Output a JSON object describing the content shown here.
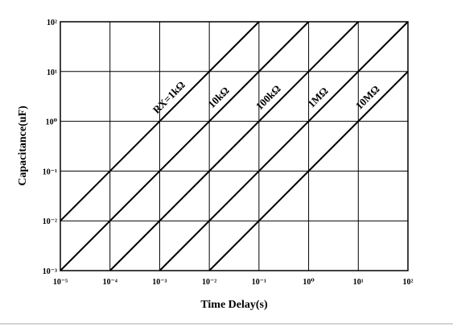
{
  "chart_data": {
    "type": "line",
    "x_label": "Time Delay(s)",
    "y_label": "Capacitance(uF)",
    "log_x": true,
    "log_y": true,
    "grid": true,
    "color": "#000000",
    "xlim": [
      1e-05,
      100
    ],
    "ylim": [
      0.001,
      100
    ],
    "xticks": [
      {
        "value": 1e-05,
        "label": "10⁻⁵"
      },
      {
        "value": 0.0001,
        "label": "10⁻⁴"
      },
      {
        "value": 0.001,
        "label": "10⁻³"
      },
      {
        "value": 0.01,
        "label": "10⁻²"
      },
      {
        "value": 0.1,
        "label": "10⁻¹"
      },
      {
        "value": 1,
        "label": "10⁰"
      },
      {
        "value": 10,
        "label": "10¹"
      },
      {
        "value": 100,
        "label": "10²"
      }
    ],
    "yticks": [
      {
        "value": 0.001,
        "label": "10⁻³"
      },
      {
        "value": 0.01,
        "label": "10⁻²"
      },
      {
        "value": 0.1,
        "label": "10⁻¹"
      },
      {
        "value": 1,
        "label": "10⁰"
      },
      {
        "value": 10,
        "label": "10¹"
      },
      {
        "value": 100,
        "label": "10²"
      }
    ],
    "series": [
      {
        "name": "RX=1kΩ",
        "x": [
          1e-05,
          0.1
        ],
        "y": [
          0.01,
          100
        ]
      },
      {
        "name": "10kΩ",
        "x": [
          1e-05,
          1
        ],
        "y": [
          0.001,
          100
        ]
      },
      {
        "name": "100kΩ",
        "x": [
          0.0001,
          10
        ],
        "y": [
          0.001,
          100
        ]
      },
      {
        "name": "1MΩ",
        "x": [
          0.001,
          100
        ],
        "y": [
          0.001,
          100
        ]
      },
      {
        "name": "10MΩ",
        "x": [
          0.01,
          100
        ],
        "y": [
          0.001,
          10
        ]
      }
    ]
  }
}
